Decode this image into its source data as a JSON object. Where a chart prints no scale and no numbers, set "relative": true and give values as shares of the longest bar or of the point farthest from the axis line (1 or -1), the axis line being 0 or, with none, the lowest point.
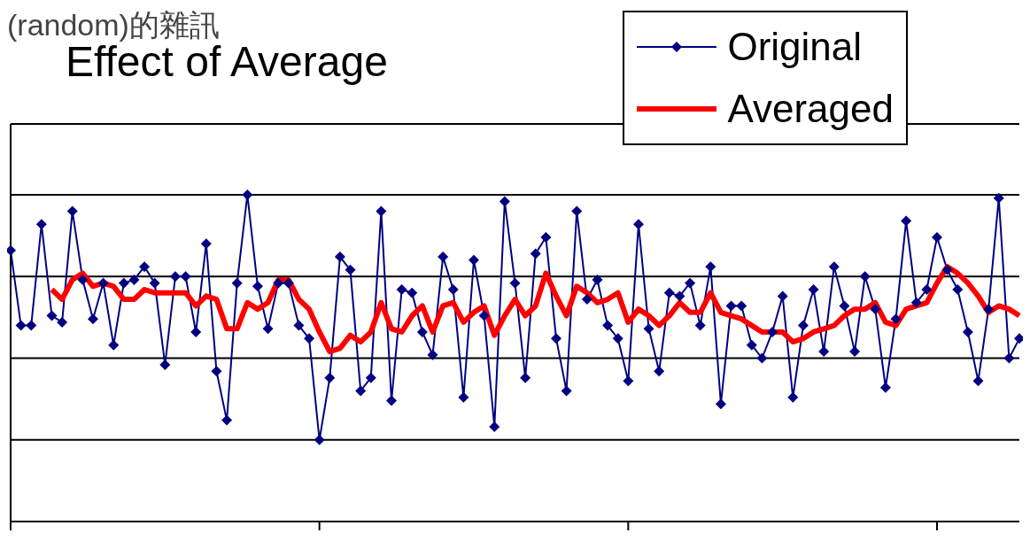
{
  "chart_data": {
    "type": "line",
    "title": "Effect of Average",
    "annotations": [
      "(random)的雜訊"
    ],
    "categories": [
      null,
      null,
      null,
      null,
      null,
      null,
      null,
      null,
      null,
      null,
      null,
      null,
      null,
      null,
      null,
      null,
      null,
      null,
      null,
      null,
      null,
      null,
      null,
      null,
      null,
      null,
      null,
      null,
      null,
      null,
      null,
      null,
      null,
      null,
      null,
      null,
      null,
      null,
      null,
      null,
      null,
      null,
      null,
      null,
      null,
      null,
      null,
      null,
      null,
      null,
      null,
      null,
      null,
      null,
      null,
      null,
      null,
      null,
      null,
      null,
      null,
      null,
      null,
      null,
      null,
      null,
      null,
      null,
      null,
      null,
      null,
      null,
      null,
      null,
      null,
      null,
      null,
      null,
      null,
      null,
      null,
      null,
      null,
      null,
      null,
      null,
      null,
      null,
      null,
      null,
      null,
      null,
      null,
      null,
      null,
      null,
      null,
      null,
      null
    ],
    "relative": true,
    "series": [
      {
        "name": "Original",
        "color": "#000080",
        "marker": "diamond",
        "values": [
          0.83,
          0.6,
          0.6,
          0.91,
          0.63,
          0.61,
          0.95,
          0.74,
          0.62,
          0.73,
          0.54,
          0.73,
          0.74,
          0.78,
          0.73,
          0.48,
          0.75,
          0.75,
          0.58,
          0.85,
          0.46,
          0.31,
          0.73,
          1.0,
          0.72,
          0.59,
          0.73,
          0.73,
          0.6,
          0.56,
          0.25,
          0.44,
          0.81,
          0.77,
          0.4,
          0.44,
          0.95,
          0.37,
          0.71,
          0.7,
          0.58,
          0.51,
          0.81,
          0.71,
          0.38,
          0.8,
          0.63,
          0.29,
          0.98,
          0.73,
          0.44,
          0.82,
          0.87,
          0.56,
          0.4,
          0.95,
          0.68,
          0.74,
          0.6,
          0.56,
          0.43,
          0.91,
          0.59,
          0.46,
          0.7,
          0.69,
          0.73,
          0.6,
          0.78,
          0.36,
          0.66,
          0.66,
          0.54,
          0.5,
          0.58,
          0.69,
          0.38,
          0.6,
          0.71,
          0.52,
          0.78,
          0.66,
          0.52,
          0.75,
          0.65,
          0.41,
          0.62,
          0.92,
          0.67,
          0.71,
          0.87,
          0.77,
          0.71,
          0.58,
          0.43,
          0.65,
          0.99,
          0.5,
          0.56
        ]
      },
      {
        "name": "Averaged",
        "color": "#ff0000",
        "marker": "none",
        "values": [
          null,
          null,
          null,
          null,
          0.71,
          0.68,
          0.74,
          0.76,
          0.72,
          0.73,
          0.72,
          0.68,
          0.68,
          0.71,
          0.7,
          0.7,
          0.7,
          0.7,
          0.66,
          0.69,
          0.68,
          0.59,
          0.59,
          0.67,
          0.65,
          0.67,
          0.74,
          0.74,
          0.68,
          0.65,
          0.58,
          0.52,
          0.53,
          0.57,
          0.55,
          0.58,
          0.67,
          0.59,
          0.58,
          0.63,
          0.66,
          0.58,
          0.66,
          0.67,
          0.61,
          0.64,
          0.66,
          0.57,
          0.63,
          0.68,
          0.63,
          0.66,
          0.76,
          0.69,
          0.63,
          0.72,
          0.7,
          0.67,
          0.68,
          0.7,
          0.61,
          0.65,
          0.63,
          0.6,
          0.63,
          0.67,
          0.64,
          0.64,
          0.7,
          0.64,
          0.63,
          0.62,
          0.6,
          0.58,
          0.58,
          0.58,
          0.55,
          0.56,
          0.58,
          0.59,
          0.6,
          0.63,
          0.65,
          0.65,
          0.67,
          0.61,
          0.6,
          0.65,
          0.66,
          0.67,
          0.73,
          0.78,
          0.76,
          0.73,
          0.69,
          0.64,
          0.66,
          0.65,
          0.63
        ]
      }
    ],
    "grid": "y",
    "legend": "top right",
    "line_style": "solid"
  }
}
